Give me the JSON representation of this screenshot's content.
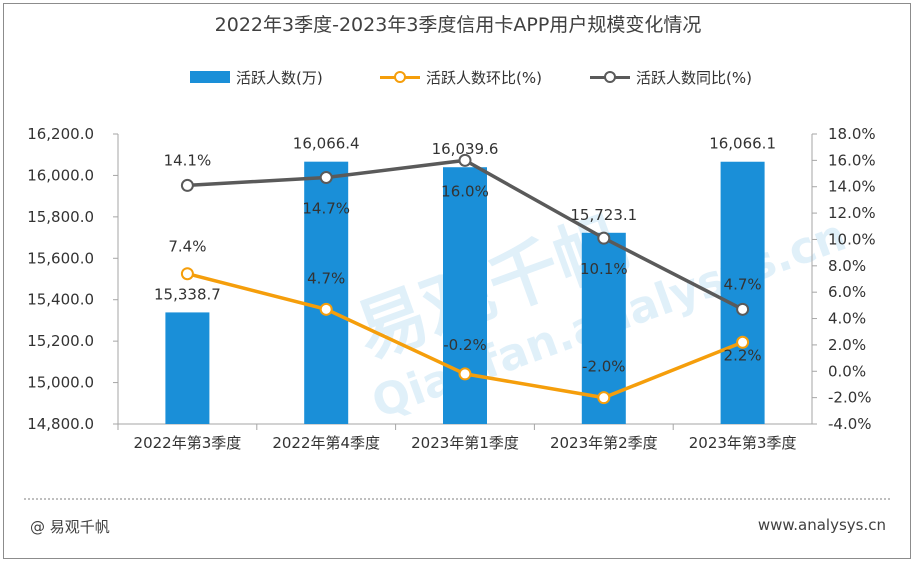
{
  "chart_data": {
    "type": "bar",
    "title": "2022年3季度-2023年3季度信用卡APP用户规模变化情况",
    "categories": [
      "2022年第3季度",
      "2022年第4季度",
      "2023年第1季度",
      "2023年第2季度",
      "2023年第3季度"
    ],
    "series": [
      {
        "name": "活跃人数(万)",
        "type": "bar",
        "axis": "left",
        "color": "#1a8fd8",
        "values": [
          15338.7,
          16066.4,
          16039.6,
          15723.1,
          16066.1
        ],
        "labels": [
          "15,338.7",
          "16,066.4",
          "16,039.6",
          "15,723.1",
          "16,066.1"
        ]
      },
      {
        "name": "活跃人数环比(%)",
        "type": "line",
        "axis": "right",
        "color": "#f59e0b",
        "values": [
          7.4,
          4.7,
          -0.2,
          -2.0,
          2.2
        ],
        "labels": [
          "7.4%",
          "4.7%",
          "-0.2%",
          "-2.0%",
          "2.2%"
        ]
      },
      {
        "name": "活跃人数同比(%)",
        "type": "line",
        "axis": "right",
        "color": "#5a5a5a",
        "values": [
          14.1,
          14.7,
          16.0,
          10.1,
          4.7
        ],
        "labels": [
          "14.1%",
          "14.7%",
          "16.0%",
          "10.1%",
          "4.7%"
        ]
      }
    ],
    "y_left": {
      "min": 14800,
      "max": 16200,
      "ticks": [
        "16,200.0",
        "16,000.0",
        "15,800.0",
        "15,600.0",
        "15,400.0",
        "15,200.0",
        "15,000.0",
        "14,800.0"
      ]
    },
    "y_right": {
      "min": -4,
      "max": 18,
      "ticks": [
        "18.0%",
        "16.0%",
        "14.0%",
        "12.0%",
        "10.0%",
        "8.0%",
        "6.0%",
        "4.0%",
        "2.0%",
        "0.0%",
        "-2.0%",
        "-4.0%"
      ]
    },
    "legend_position": "top",
    "grid": false
  },
  "footer": {
    "source": "@ 易观千帆",
    "url": "www.analysys.cn"
  },
  "watermark": {
    "text_cn": "易观千帆",
    "text_en": "Qianfan.analysys.cn"
  }
}
